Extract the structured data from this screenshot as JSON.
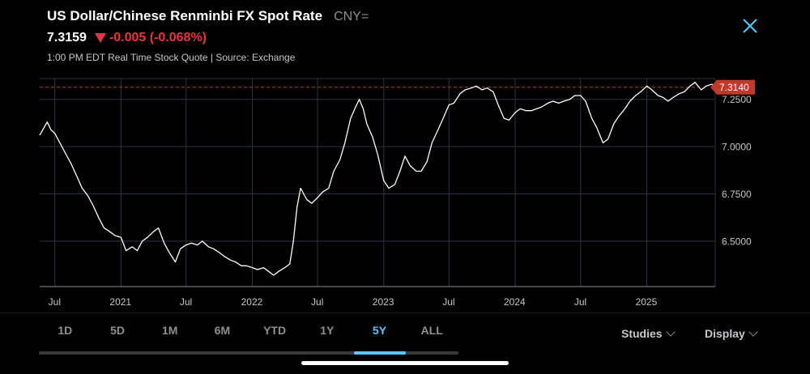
{
  "header": {
    "title": "US Dollar/Chinese Renminbi FX Spot Rate",
    "ticker": "CNY=",
    "price": "7.3159",
    "change": "-0.005 (-0.068%)",
    "quote_info": "1:00 PM EDT Real Time Stock Quote | Source: Exchange"
  },
  "range_tabs": [
    "1D",
    "5D",
    "1M",
    "6M",
    "YTD",
    "1Y",
    "5Y",
    "ALL"
  ],
  "active_range": "5Y",
  "menus": {
    "studies": "Studies",
    "display": "Display"
  },
  "colors": {
    "line": "#ffffff",
    "up": "#e2383f",
    "accent": "#5ac8fa",
    "grid": "#2c3440",
    "price_tag": "#c0392b"
  },
  "chart_data": {
    "type": "line",
    "title": "",
    "xlabel": "",
    "ylabel": "",
    "x_tick_labels": [
      "Jul",
      "2021",
      "Jul",
      "2022",
      "Jul",
      "2023",
      "Jul",
      "2024",
      "Jul",
      "2025"
    ],
    "y_ticks": [
      6.5,
      6.75,
      7.0,
      7.25
    ],
    "y_tick_labels": [
      "6.5000",
      "6.7500",
      "7.0000",
      "7.2500"
    ],
    "ylim": [
      6.26,
      7.36
    ],
    "xlim": [
      "2020-05-20",
      "2025-07-10"
    ],
    "last_value": 7.314,
    "last_value_label": "7.3140",
    "grid": true,
    "series": [
      {
        "x": [
          "2020-05-20",
          "2020-06-01",
          "2020-06-10",
          "2020-06-20",
          "2020-07-01",
          "2020-07-15",
          "2020-08-01",
          "2020-08-15",
          "2020-09-01",
          "2020-09-15",
          "2020-10-01",
          "2020-10-15",
          "2020-11-01",
          "2020-11-15",
          "2020-12-01",
          "2020-12-15",
          "2021-01-01",
          "2021-01-15",
          "2021-02-01",
          "2021-02-15",
          "2021-03-01",
          "2021-03-15",
          "2021-04-01",
          "2021-04-15",
          "2021-05-01",
          "2021-05-15",
          "2021-06-01",
          "2021-06-15",
          "2021-07-01",
          "2021-07-15",
          "2021-08-01",
          "2021-08-15",
          "2021-09-01",
          "2021-09-15",
          "2021-10-01",
          "2021-10-15",
          "2021-11-01",
          "2021-11-15",
          "2021-12-01",
          "2021-12-15",
          "2022-01-01",
          "2022-01-15",
          "2022-02-01",
          "2022-02-15",
          "2022-03-01",
          "2022-03-15",
          "2022-04-01",
          "2022-04-15",
          "2022-04-25",
          "2022-05-05",
          "2022-05-15",
          "2022-06-01",
          "2022-06-15",
          "2022-07-01",
          "2022-07-15",
          "2022-08-01",
          "2022-08-15",
          "2022-09-01",
          "2022-09-15",
          "2022-10-01",
          "2022-10-15",
          "2022-10-25",
          "2022-11-05",
          "2022-11-15",
          "2022-12-01",
          "2022-12-15",
          "2023-01-01",
          "2023-01-15",
          "2023-02-01",
          "2023-02-15",
          "2023-03-01",
          "2023-03-15",
          "2023-04-01",
          "2023-04-15",
          "2023-05-01",
          "2023-05-15",
          "2023-06-01",
          "2023-06-15",
          "2023-07-01",
          "2023-07-15",
          "2023-08-01",
          "2023-08-15",
          "2023-09-01",
          "2023-09-15",
          "2023-10-01",
          "2023-10-15",
          "2023-11-01",
          "2023-11-15",
          "2023-12-01",
          "2023-12-15",
          "2024-01-01",
          "2024-01-15",
          "2024-02-01",
          "2024-02-15",
          "2024-03-01",
          "2024-03-15",
          "2024-04-01",
          "2024-04-15",
          "2024-05-01",
          "2024-05-15",
          "2024-06-01",
          "2024-06-15",
          "2024-07-01",
          "2024-07-15",
          "2024-08-01",
          "2024-08-15",
          "2024-09-01",
          "2024-09-15",
          "2024-10-01",
          "2024-10-15",
          "2024-11-01",
          "2024-11-15",
          "2024-12-01",
          "2024-12-15",
          "2025-01-01",
          "2025-01-15",
          "2025-02-01",
          "2025-02-15",
          "2025-03-01",
          "2025-03-15",
          "2025-04-01",
          "2025-04-15",
          "2025-05-01",
          "2025-05-15",
          "2025-06-01",
          "2025-06-15",
          "2025-07-01",
          "2025-07-10"
        ],
        "y": [
          7.06,
          7.1,
          7.13,
          7.09,
          7.07,
          7.02,
          6.96,
          6.91,
          6.84,
          6.78,
          6.74,
          6.69,
          6.62,
          6.57,
          6.55,
          6.53,
          6.52,
          6.45,
          6.47,
          6.45,
          6.5,
          6.52,
          6.55,
          6.57,
          6.49,
          6.44,
          6.39,
          6.46,
          6.48,
          6.49,
          6.48,
          6.5,
          6.47,
          6.46,
          6.44,
          6.42,
          6.4,
          6.39,
          6.37,
          6.37,
          6.36,
          6.35,
          6.36,
          6.34,
          6.32,
          6.34,
          6.36,
          6.38,
          6.5,
          6.68,
          6.78,
          6.72,
          6.7,
          6.73,
          6.76,
          6.78,
          6.87,
          6.93,
          7.02,
          7.15,
          7.21,
          7.25,
          7.2,
          7.12,
          7.05,
          6.96,
          6.82,
          6.78,
          6.8,
          6.87,
          6.95,
          6.9,
          6.87,
          6.87,
          6.92,
          7.02,
          7.09,
          7.15,
          7.22,
          7.23,
          7.28,
          7.3,
          7.31,
          7.32,
          7.3,
          7.31,
          7.29,
          7.22,
          7.15,
          7.14,
          7.18,
          7.2,
          7.19,
          7.19,
          7.2,
          7.21,
          7.23,
          7.24,
          7.23,
          7.24,
          7.25,
          7.27,
          7.27,
          7.24,
          7.15,
          7.1,
          7.02,
          7.04,
          7.12,
          7.16,
          7.2,
          7.24,
          7.27,
          7.29,
          7.32,
          7.3,
          7.27,
          7.26,
          7.24,
          7.26,
          7.28,
          7.29,
          7.32,
          7.34,
          7.3,
          7.32,
          7.33,
          7.314
        ]
      }
    ]
  }
}
